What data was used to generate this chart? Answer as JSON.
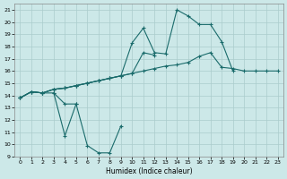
{
  "xlabel": "Humidex (Indice chaleur)",
  "bg_color": "#cce8e8",
  "grid_color": "#aacccc",
  "line_color": "#1a6b6b",
  "xlim": [
    -0.5,
    23.5
  ],
  "ylim": [
    9,
    21.5
  ],
  "yticks": [
    9,
    10,
    11,
    12,
    13,
    14,
    15,
    16,
    17,
    18,
    19,
    20,
    21
  ],
  "xticks": [
    0,
    1,
    2,
    3,
    4,
    5,
    6,
    7,
    8,
    9,
    10,
    11,
    12,
    13,
    14,
    15,
    16,
    17,
    18,
    19,
    20,
    21,
    22,
    23
  ],
  "line1_y": [
    13.8,
    14.3,
    14.2,
    14.2,
    13.3,
    13.3,
    null,
    null,
    null,
    null,
    null,
    null,
    null,
    null,
    null,
    null,
    null,
    null,
    null,
    null,
    null,
    null,
    null,
    null
  ],
  "line1b_x": [
    3,
    4,
    5,
    6,
    7,
    8,
    9
  ],
  "line1b_y": [
    14.2,
    10.7,
    13.3,
    9.9,
    9.3,
    9.3,
    11.5
  ],
  "line2_y": [
    13.8,
    14.3,
    14.2,
    14.5,
    14.6,
    14.8,
    15.0,
    15.2,
    15.4,
    15.6,
    15.8,
    17.5,
    17.3,
    null,
    null,
    null,
    null,
    null,
    null,
    null,
    null,
    null,
    null,
    null
  ],
  "line3_y": [
    13.8,
    14.3,
    14.2,
    14.5,
    14.6,
    14.8,
    15.0,
    15.2,
    15.4,
    15.6,
    18.3,
    19.5,
    17.5,
    17.4,
    21.0,
    20.5,
    19.8,
    19.8,
    18.4,
    16.0,
    null,
    null,
    null,
    null
  ],
  "line4_y": [
    13.8,
    14.3,
    14.2,
    14.5,
    14.6,
    14.8,
    15.0,
    15.2,
    15.4,
    15.6,
    15.8,
    16.0,
    16.2,
    16.4,
    16.5,
    16.7,
    17.2,
    17.5,
    16.3,
    16.2,
    16.0,
    16.0,
    16.0,
    16.0
  ]
}
